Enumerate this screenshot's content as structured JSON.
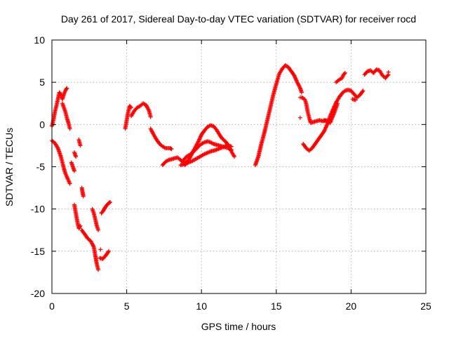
{
  "chart_data": {
    "type": "scatter",
    "title": "Day 261 of 2017, Sidereal Day-to-day VTEC variation (SDTVAR) for receiver rocd",
    "xlabel": "GPS time / hours",
    "ylabel": "SDTVAR / TECUs",
    "xlim": [
      0,
      25
    ],
    "ylim": [
      -20,
      10
    ],
    "xticks": [
      0,
      5,
      10,
      15,
      20,
      25
    ],
    "yticks": [
      -20,
      -15,
      -10,
      -5,
      0,
      5,
      10
    ],
    "grid": true,
    "marker": "plus",
    "color": "#ff0000",
    "series": [
      {
        "segments": [
          [
            [
              0.0,
              -0.2
            ],
            [
              0.1,
              0.5
            ],
            [
              0.2,
              1.5
            ],
            [
              0.3,
              2.2
            ],
            [
              0.4,
              3.0
            ],
            [
              0.5,
              3.8
            ],
            [
              0.6,
              3.5
            ],
            [
              0.7,
              3.0
            ],
            [
              0.8,
              3.6
            ],
            [
              0.9,
              4.0
            ],
            [
              1.0,
              4.3
            ]
          ],
          [
            [
              0.7,
              2.5
            ],
            [
              0.8,
              2.0
            ],
            [
              0.9,
              1.5
            ],
            [
              1.0,
              0.8
            ],
            [
              1.1,
              0.2
            ],
            [
              1.2,
              -0.5
            ]
          ],
          [
            [
              0.0,
              -1.9
            ],
            [
              0.2,
              -2.2
            ],
            [
              0.4,
              -2.8
            ],
            [
              0.6,
              -3.8
            ],
            [
              0.7,
              -4.5
            ],
            [
              0.8,
              -5.2
            ],
            [
              0.9,
              -5.8
            ],
            [
              1.0,
              -6.2
            ],
            [
              1.1,
              -6.6
            ],
            [
              1.2,
              -7.0
            ]
          ],
          [
            [
              1.3,
              -4.5
            ],
            [
              1.4,
              -5.0
            ],
            [
              1.5,
              -5.5
            ]
          ],
          [
            [
              1.5,
              -3.3
            ],
            [
              1.6,
              -3.8
            ]
          ],
          [
            [
              1.8,
              -1.8
            ],
            [
              1.9,
              -2.5
            ]
          ],
          [
            [
              1.5,
              -9.5
            ],
            [
              1.6,
              -10.5
            ],
            [
              1.7,
              -11.5
            ],
            [
              1.8,
              -12.3
            ],
            [
              1.9,
              -12.0
            ]
          ],
          [
            [
              2.0,
              -12.5
            ],
            [
              2.2,
              -13.0
            ],
            [
              2.4,
              -13.5
            ],
            [
              2.6,
              -13.8
            ],
            [
              2.8,
              -14.5
            ],
            [
              2.9,
              -15.5
            ],
            [
              3.0,
              -16.5
            ],
            [
              3.1,
              -17.2
            ]
          ],
          [
            [
              2.7,
              -10.0
            ],
            [
              2.8,
              -10.5
            ],
            [
              2.9,
              -11.2
            ],
            [
              3.0,
              -12.0
            ],
            [
              3.1,
              -12.5
            ]
          ],
          [
            [
              3.2,
              -15.8
            ],
            [
              3.4,
              -15.9
            ],
            [
              3.6,
              -15.5
            ],
            [
              3.8,
              -15.0
            ]
          ],
          [
            [
              3.3,
              -10.5
            ],
            [
              3.4,
              -10.3
            ],
            [
              3.5,
              -10.0
            ],
            [
              3.6,
              -9.7
            ],
            [
              3.7,
              -9.5
            ],
            [
              3.8,
              -9.3
            ],
            [
              3.9,
              -9.2
            ]
          ],
          [
            [
              2.0,
              -7.5
            ],
            [
              2.1,
              -8.5
            ]
          ],
          [
            [
              3.25,
              -14.8
            ]
          ]
        ]
      },
      {
        "segments": [
          [
            [
              4.9,
              -0.5
            ],
            [
              5.0,
              0.5
            ],
            [
              5.1,
              1.5
            ],
            [
              5.2,
              2.2
            ],
            [
              5.3,
              2.0
            ]
          ],
          [
            [
              5.3,
              1.0
            ],
            [
              5.5,
              1.6
            ],
            [
              5.7,
              2.0
            ],
            [
              5.9,
              2.2
            ],
            [
              6.1,
              2.5
            ],
            [
              6.3,
              2.3
            ],
            [
              6.5,
              1.6
            ],
            [
              6.6,
              0.9
            ]
          ],
          [
            [
              6.6,
              -0.5
            ],
            [
              6.8,
              -1.2
            ],
            [
              7.0,
              -1.8
            ],
            [
              7.2,
              -2.3
            ],
            [
              7.4,
              -2.6
            ],
            [
              7.6,
              -2.8
            ],
            [
              7.9,
              -2.8
            ],
            [
              8.0,
              -2.9
            ]
          ]
        ]
      },
      {
        "segments": [
          [
            [
              7.4,
              -4.8
            ],
            [
              7.6,
              -4.4
            ],
            [
              7.8,
              -4.2
            ],
            [
              8.0,
              -4.1
            ],
            [
              8.2,
              -4.0
            ],
            [
              8.4,
              -3.9
            ],
            [
              8.6,
              -4.2
            ],
            [
              8.8,
              -4.5
            ],
            [
              9.0,
              -4.4
            ]
          ],
          [
            [
              8.6,
              -4.8
            ],
            [
              9.0,
              -4.6
            ],
            [
              9.4,
              -4.3
            ],
            [
              9.8,
              -3.9
            ],
            [
              10.2,
              -3.5
            ],
            [
              10.6,
              -3.2
            ],
            [
              11.0,
              -3.0
            ],
            [
              11.4,
              -2.7
            ],
            [
              11.8,
              -2.5
            ],
            [
              12.0,
              -2.6
            ]
          ],
          [
            [
              8.8,
              -4.2
            ],
            [
              9.0,
              -3.8
            ],
            [
              9.2,
              -3.6
            ],
            [
              9.4,
              -3.3
            ],
            [
              9.6,
              -3.0
            ],
            [
              9.8,
              -2.6
            ],
            [
              10.0,
              -2.3
            ],
            [
              10.2,
              -2.1
            ],
            [
              10.4,
              -2.0
            ],
            [
              10.6,
              -2.1
            ],
            [
              10.8,
              -2.3
            ],
            [
              11.0,
              -2.4
            ],
            [
              11.4,
              -2.6
            ],
            [
              11.8,
              -2.8
            ],
            [
              12.0,
              -3.0
            ]
          ],
          [
            [
              8.9,
              -4.8
            ],
            [
              9.2,
              -4.0
            ],
            [
              9.5,
              -3.0
            ],
            [
              9.8,
              -2.0
            ],
            [
              10.0,
              -1.2
            ],
            [
              10.2,
              -0.7
            ],
            [
              10.4,
              -0.3
            ],
            [
              10.6,
              -0.1
            ],
            [
              10.8,
              -0.2
            ],
            [
              11.0,
              -0.6
            ],
            [
              11.2,
              -1.2
            ],
            [
              11.4,
              -1.7
            ],
            [
              11.6,
              -2.0
            ],
            [
              11.8,
              -2.5
            ],
            [
              12.0,
              -3.2
            ],
            [
              12.2,
              -3.8
            ]
          ]
        ]
      },
      {
        "segments": [
          [
            [
              13.6,
              -4.8
            ],
            [
              13.8,
              -3.8
            ],
            [
              14.0,
              -2.3
            ],
            [
              14.2,
              -1.0
            ],
            [
              14.4,
              0.5
            ],
            [
              14.6,
              2.0
            ],
            [
              14.8,
              3.5
            ],
            [
              15.0,
              4.8
            ],
            [
              15.2,
              6.0
            ],
            [
              15.4,
              6.6
            ],
            [
              15.6,
              7.0
            ],
            [
              15.8,
              6.8
            ],
            [
              16.0,
              6.3
            ],
            [
              16.2,
              5.8
            ],
            [
              16.4,
              5.0
            ],
            [
              16.6,
              4.3
            ],
            [
              16.7,
              3.8
            ]
          ],
          [
            [
              16.6,
              3.2
            ],
            [
              16.7,
              3.2
            ],
            [
              16.8,
              3.1
            ]
          ],
          [
            [
              16.6,
              0.8
            ]
          ],
          [
            [
              16.9,
              3.0
            ],
            [
              17.0,
              2.5
            ],
            [
              17.1,
              1.5
            ],
            [
              17.2,
              0.8
            ],
            [
              17.3,
              0.2
            ],
            [
              17.5,
              0.3
            ],
            [
              17.7,
              0.4
            ],
            [
              17.9,
              0.5
            ],
            [
              18.1,
              0.4
            ],
            [
              18.3,
              0.5
            ],
            [
              18.5,
              0.3
            ]
          ],
          [
            [
              16.8,
              -2.3
            ],
            [
              17.0,
              -2.8
            ],
            [
              17.2,
              -3.1
            ],
            [
              17.4,
              -2.8
            ],
            [
              17.6,
              -2.3
            ],
            [
              17.8,
              -1.8
            ],
            [
              18.0,
              -1.3
            ],
            [
              18.2,
              -0.8
            ],
            [
              18.4,
              0.0
            ],
            [
              18.6,
              1.0
            ],
            [
              18.8,
              1.8
            ],
            [
              19.0,
              2.6
            ],
            [
              19.2,
              3.2
            ],
            [
              19.4,
              3.7
            ],
            [
              19.6,
              4.0
            ],
            [
              19.8,
              4.1
            ],
            [
              20.0,
              4.0
            ],
            [
              20.2,
              3.6
            ],
            [
              20.4,
              3.2
            ],
            [
              20.6,
              3.5
            ],
            [
              20.8,
              4.0
            ]
          ],
          [
            [
              18.2,
              0.5
            ],
            [
              18.6,
              0.2
            ],
            [
              18.9,
              1.5
            ],
            [
              19.1,
              2.5
            ]
          ],
          [
            [
              19.0,
              5.0
            ],
            [
              19.2,
              5.3
            ],
            [
              19.4,
              5.5
            ],
            [
              19.5,
              5.9
            ],
            [
              19.6,
              6.1
            ]
          ],
          [
            [
              20.1,
              3.0
            ],
            [
              20.3,
              2.9
            ]
          ],
          [
            [
              20.9,
              5.9
            ],
            [
              21.1,
              6.3
            ],
            [
              21.3,
              6.4
            ],
            [
              21.5,
              6.1
            ],
            [
              21.7,
              6.5
            ],
            [
              21.9,
              6.4
            ],
            [
              22.1,
              5.8
            ],
            [
              22.3,
              5.5
            ],
            [
              22.5,
              5.9
            ]
          ],
          [
            [
              22.5,
              6.2
            ]
          ]
        ]
      }
    ]
  }
}
